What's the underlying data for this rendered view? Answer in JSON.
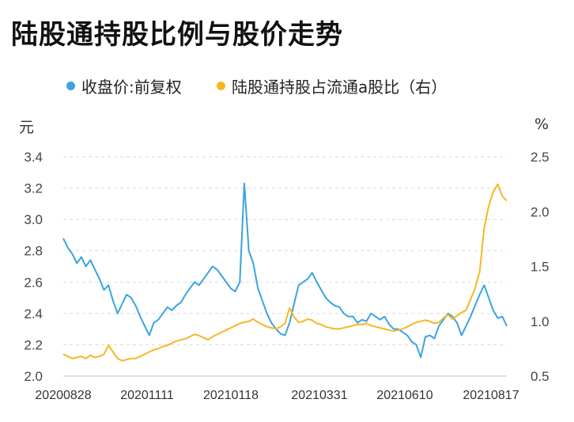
{
  "title": "陆股通持股比例与股价走势",
  "legend": {
    "series1_label": "收盘价:前复权",
    "series2_label": "陆股通持股占流通a股比（右）"
  },
  "units": {
    "left": "元",
    "right": "%"
  },
  "colors": {
    "series1": "#3aa3e0",
    "series2": "#f5b824",
    "grid": "#d9d9d9",
    "axis": "#bfbfbf"
  },
  "chart_data": {
    "type": "line",
    "title": "陆股通持股比例与股价走势",
    "x_tick_labels": [
      "20200828",
      "20201111",
      "20210118",
      "20210331",
      "20210610",
      "20210817"
    ],
    "y_left": {
      "label": "元",
      "min": 2.0,
      "max": 3.4,
      "ticks": [
        "2.0",
        "2.2",
        "2.4",
        "2.6",
        "2.8",
        "3.0",
        "3.2",
        "3.4"
      ]
    },
    "y_right": {
      "label": "%",
      "min": 0.5,
      "max": 2.5,
      "ticks": [
        "0.5",
        "1.0",
        "1.5",
        "2.0",
        "2.5"
      ]
    },
    "series": [
      {
        "name": "收盘价:前复权",
        "axis": "left",
        "values": [
          2.88,
          2.82,
          2.78,
          2.72,
          2.76,
          2.7,
          2.74,
          2.68,
          2.62,
          2.55,
          2.58,
          2.48,
          2.4,
          2.46,
          2.52,
          2.5,
          2.45,
          2.38,
          2.32,
          2.26,
          2.34,
          2.36,
          2.4,
          2.44,
          2.42,
          2.45,
          2.47,
          2.52,
          2.56,
          2.6,
          2.58,
          2.62,
          2.66,
          2.7,
          2.68,
          2.64,
          2.6,
          2.56,
          2.54,
          2.6,
          3.23,
          2.8,
          2.72,
          2.56,
          2.48,
          2.4,
          2.34,
          2.3,
          2.27,
          2.26,
          2.34,
          2.46,
          2.58,
          2.6,
          2.62,
          2.66,
          2.6,
          2.55,
          2.5,
          2.47,
          2.45,
          2.44,
          2.4,
          2.38,
          2.38,
          2.34,
          2.36,
          2.35,
          2.4,
          2.38,
          2.36,
          2.38,
          2.33,
          2.3,
          2.3,
          2.28,
          2.26,
          2.22,
          2.2,
          2.12,
          2.25,
          2.26,
          2.24,
          2.32,
          2.36,
          2.4,
          2.38,
          2.34,
          2.26,
          2.32,
          2.38,
          2.45,
          2.52,
          2.58,
          2.5,
          2.42,
          2.37,
          2.38,
          2.32
        ]
      },
      {
        "name": "陆股通持股占流通a股比（右）",
        "axis": "right",
        "values": [
          0.7,
          0.68,
          0.66,
          0.67,
          0.68,
          0.66,
          0.69,
          0.67,
          0.68,
          0.7,
          0.78,
          0.72,
          0.66,
          0.64,
          0.65,
          0.66,
          0.66,
          0.68,
          0.7,
          0.72,
          0.74,
          0.75,
          0.77,
          0.78,
          0.8,
          0.82,
          0.83,
          0.84,
          0.86,
          0.88,
          0.87,
          0.85,
          0.83,
          0.86,
          0.88,
          0.9,
          0.92,
          0.94,
          0.96,
          0.98,
          0.99,
          1.0,
          1.02,
          0.99,
          0.97,
          0.95,
          0.94,
          0.93,
          0.95,
          0.98,
          1.12,
          1.04,
          0.99,
          1.0,
          1.02,
          1.01,
          0.98,
          0.97,
          0.95,
          0.94,
          0.93,
          0.93,
          0.94,
          0.95,
          0.96,
          0.97,
          0.97,
          0.98,
          0.96,
          0.95,
          0.94,
          0.93,
          0.92,
          0.91,
          0.92,
          0.93,
          0.95,
          0.97,
          0.99,
          1.0,
          1.01,
          1.0,
          0.98,
          0.99,
          1.03,
          1.06,
          1.02,
          1.05,
          1.08,
          1.1,
          1.2,
          1.3,
          1.45,
          1.85,
          2.05,
          2.18,
          2.25,
          2.14,
          2.1
        ]
      }
    ]
  }
}
